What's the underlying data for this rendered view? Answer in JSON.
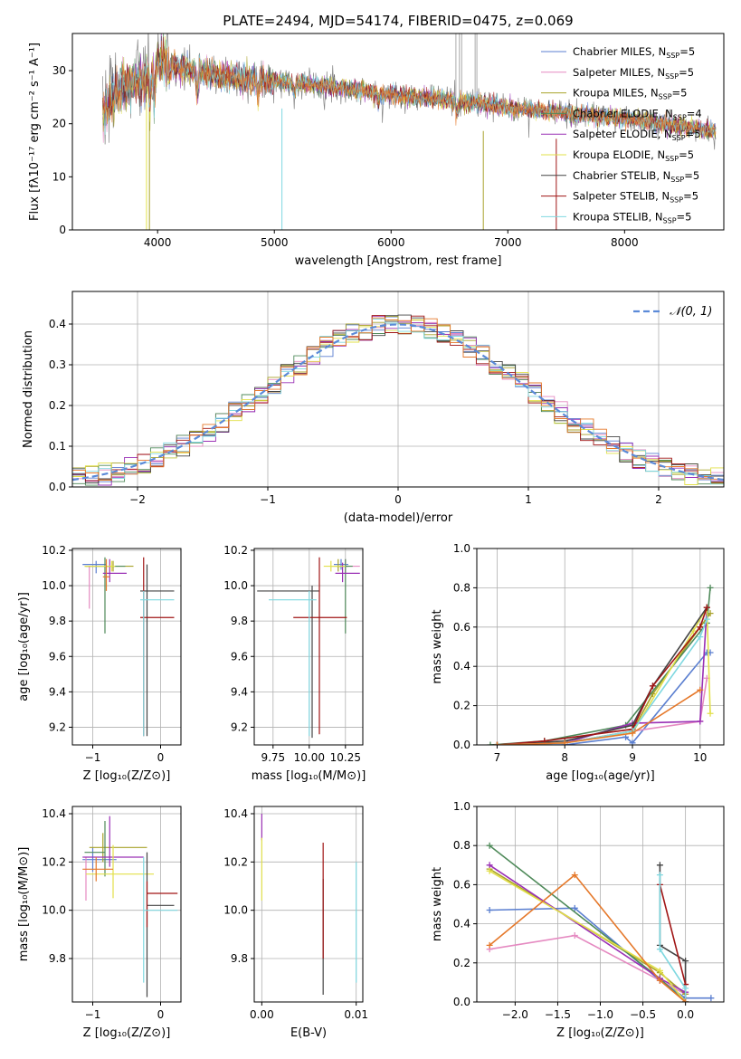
{
  "figure": {
    "title": "PLATE=2494, MJD=54174, FIBERID=0475, z=0.069"
  },
  "chart_data": [
    {
      "id": "spectrum",
      "type": "line",
      "xlabel": "wavelength [Angstrom, rest frame]",
      "ylabel": "Flux [fλ10⁻¹⁷ erg cm⁻² s⁻¹ A⁻¹]",
      "xlim": [
        3270,
        8850
      ],
      "ylim": [
        0,
        37
      ],
      "xticks": [
        4000,
        5000,
        6000,
        7000,
        8000
      ],
      "yticks": [
        0,
        10,
        20,
        30
      ],
      "legend_position": "top-right",
      "series": [
        {
          "name": "Chabrier MILES, N_SSP=5",
          "color": "#5b7fd0"
        },
        {
          "name": "Salpeter MILES, N_SSP=5",
          "color": "#e58ac1"
        },
        {
          "name": "Kroupa MILES, N_SSP=5",
          "color": "#a8a22a"
        },
        {
          "name": "Chabrier ELODIE, N_SSP=4",
          "color": "#4f8a5a"
        },
        {
          "name": "Salpeter ELODIE, N_SSP=5",
          "color": "#9a30b5"
        },
        {
          "name": "Kroupa ELODIE, N_SSP=5",
          "color": "#e2e04a"
        },
        {
          "name": "Chabrier STELIB, N_SSP=5",
          "color": "#444444"
        },
        {
          "name": "Salpeter STELIB, N_SSP=5",
          "color": "#a01515"
        },
        {
          "name": "Kroupa STELIB, N_SSP=5",
          "color": "#7fd8e0"
        }
      ],
      "continuum_knots": [
        [
          3530,
          23
        ],
        [
          3650,
          28
        ],
        [
          3800,
          29
        ],
        [
          3950,
          31
        ],
        [
          4050,
          32
        ],
        [
          4200,
          30.5
        ],
        [
          4500,
          29
        ],
        [
          5000,
          28
        ],
        [
          5500,
          27
        ],
        [
          6000,
          25.5
        ],
        [
          6500,
          24.5
        ],
        [
          7000,
          23
        ],
        [
          7500,
          22
        ],
        [
          8000,
          21
        ],
        [
          8500,
          19.5
        ],
        [
          8780,
          18.5
        ]
      ],
      "model_color": "#e5782a",
      "data_color": "#888888"
    },
    {
      "id": "residual-hist",
      "type": "histogram",
      "xlabel": "(data-model)/error",
      "ylabel": "Normed distribution",
      "xlim": [
        -2.5,
        2.5
      ],
      "ylim": [
        0,
        0.48
      ],
      "xticks": [
        -2,
        -1,
        0,
        1,
        2
      ],
      "yticks": [
        0.0,
        0.1,
        0.2,
        0.3,
        0.4
      ],
      "grid": true,
      "legend_position": "top-right",
      "reference": {
        "name": "𝒩(0, 1)",
        "color": "#5b8ad8",
        "mean": 0,
        "sigma": 1
      },
      "bin_width": 0.1,
      "bin_start": -2.5,
      "colors": [
        "#5b7fd0",
        "#e58ac1",
        "#a8a22a",
        "#4f8a5a",
        "#9a30b5",
        "#e2e04a",
        "#444444",
        "#a01515",
        "#7fd8e0",
        "#e5782a"
      ]
    },
    {
      "id": "age-vs-Z",
      "type": "errorbar",
      "xlabel": "Z [log₁₀(Z/Z⊙)]",
      "ylabel": "age  [log₁₀(age/yr)]",
      "xlim": [
        -1.3,
        0.3
      ],
      "ylim": [
        9.1,
        10.21
      ],
      "xticks": [
        -1,
        0
      ],
      "xticklabels": [
        "−1",
        "0"
      ],
      "yticks": [
        9.2,
        9.4,
        9.6,
        9.8,
        10.0,
        10.2
      ],
      "grid": true,
      "points": [
        {
          "x": -0.95,
          "xerr": [
            0.2,
            0.15
          ],
          "y": 10.12,
          "yerr": [
            0.05,
            0.02
          ],
          "color": "#5b7fd0"
        },
        {
          "x": -1.05,
          "xerr": [
            0.0,
            0.0
          ],
          "y": 10.11,
          "yerr": [
            0.24,
            0.0
          ],
          "color": "#e58ac1"
        },
        {
          "x": -0.7,
          "xerr": [
            0.4,
            0.3
          ],
          "y": 10.11,
          "yerr": [
            0.03,
            0.03
          ],
          "color": "#a8a22a"
        },
        {
          "x": -0.82,
          "xerr": [
            0.3,
            0.3
          ],
          "y": 10.11,
          "yerr": [
            0.38,
            0.05
          ],
          "color": "#4f8a5a"
        },
        {
          "x": -0.75,
          "xerr": [
            0.1,
            0.25
          ],
          "y": 10.07,
          "yerr": [
            0.05,
            0.08
          ],
          "color": "#9a30b5"
        },
        {
          "x": -0.72,
          "xerr": [
            0.4,
            0.05
          ],
          "y": 10.11,
          "yerr": [
            0.03,
            0.03
          ],
          "color": "#e2e04a"
        },
        {
          "x": -0.2,
          "xerr": [
            0.1,
            0.4
          ],
          "y": 9.97,
          "yerr": [
            0.82,
            0.15
          ],
          "color": "#444444"
        },
        {
          "x": -0.25,
          "xerr": [
            0.05,
            0.45
          ],
          "y": 9.82,
          "yerr": [
            0.67,
            0.34
          ],
          "color": "#a01515"
        },
        {
          "x": -0.25,
          "xerr": [
            0.05,
            0.45
          ],
          "y": 9.92,
          "yerr": [
            0.77,
            0.05
          ],
          "color": "#7fd8e0"
        },
        {
          "x": -0.8,
          "xerr": [
            0.05,
            0.05
          ],
          "y": 10.05,
          "yerr": [
            0.08,
            0.1
          ],
          "color": "#e5782a"
        }
      ]
    },
    {
      "id": "age-vs-mass",
      "type": "errorbar",
      "xlabel": "mass [log₁₀(M/M⊙)]",
      "xlim": [
        9.62,
        10.37
      ],
      "ylim": [
        9.1,
        10.21
      ],
      "xticks": [
        9.75,
        10.0,
        10.25
      ],
      "xticklabels": [
        "9.75",
        "10.00",
        "10.25"
      ],
      "yticks": [
        9.2,
        9.4,
        9.6,
        9.8,
        10.0,
        10.2
      ],
      "grid": true,
      "points": [
        {
          "x": 10.22,
          "xerr": [
            0.05,
            0.05
          ],
          "y": 10.12,
          "yerr": [
            0.03,
            0.03
          ],
          "color": "#5b7fd0"
        },
        {
          "x": 10.25,
          "xerr": [
            0.05,
            0.1
          ],
          "y": 10.11,
          "yerr": [
            0.04,
            0.04
          ],
          "color": "#e58ac1"
        },
        {
          "x": 10.2,
          "xerr": [
            0.05,
            0.07
          ],
          "y": 10.11,
          "yerr": [
            0.03,
            0.04
          ],
          "color": "#a8a22a"
        },
        {
          "x": 10.25,
          "xerr": [
            0.06,
            0.05
          ],
          "y": 10.11,
          "yerr": [
            0.38,
            0.04
          ],
          "color": "#4f8a5a"
        },
        {
          "x": 10.23,
          "xerr": [
            0.05,
            0.12
          ],
          "y": 10.07,
          "yerr": [
            0.05,
            0.06
          ],
          "color": "#9a30b5"
        },
        {
          "x": 10.15,
          "xerr": [
            0.05,
            0.1
          ],
          "y": 10.11,
          "yerr": [
            0.03,
            0.03
          ],
          "color": "#e2e04a"
        },
        {
          "x": 10.02,
          "xerr": [
            0.38,
            0.05
          ],
          "y": 9.97,
          "yerr": [
            0.83,
            0.03
          ],
          "color": "#444444"
        },
        {
          "x": 10.07,
          "xerr": [
            0.18,
            0.19
          ],
          "y": 9.82,
          "yerr": [
            0.66,
            0.34
          ],
          "color": "#a01515"
        },
        {
          "x": 10.0,
          "xerr": [
            0.28,
            0.05
          ],
          "y": 9.92,
          "yerr": [
            0.77,
            0.05
          ],
          "color": "#7fd8e0"
        }
      ]
    },
    {
      "id": "weight-vs-age",
      "type": "line",
      "xlabel": "age  [log₁₀(age/yr)]",
      "ylabel": "mass weight",
      "xlim": [
        6.7,
        10.35
      ],
      "ylim": [
        0,
        1
      ],
      "xticks": [
        7,
        8,
        9,
        10
      ],
      "yticks": [
        0.0,
        0.2,
        0.4,
        0.6,
        0.8,
        1.0
      ],
      "grid": true,
      "series": [
        {
          "color": "#5b7fd0",
          "x": [
            7.0,
            8.0,
            8.9,
            9.0,
            10.1,
            10.15
          ],
          "y": [
            0.0,
            0.0,
            0.04,
            0.01,
            0.47,
            0.47
          ]
        },
        {
          "color": "#e58ac1",
          "x": [
            7.0,
            8.0,
            9.0,
            10.0,
            10.1
          ],
          "y": [
            0.0,
            0.01,
            0.07,
            0.12,
            0.34
          ]
        },
        {
          "color": "#a8a22a",
          "x": [
            7.0,
            8.0,
            9.0,
            9.3,
            10.0,
            10.15
          ],
          "y": [
            0.0,
            0.01,
            0.07,
            0.26,
            0.6,
            0.67
          ]
        },
        {
          "color": "#4f8a5a",
          "x": [
            6.9,
            7.7,
            8.9,
            10.1,
            10.15
          ],
          "y": [
            0.0,
            0.02,
            0.1,
            0.62,
            0.8
          ]
        },
        {
          "color": "#9a30b5",
          "x": [
            7.0,
            8.0,
            9.0,
            10.0,
            10.1
          ],
          "y": [
            0.0,
            0.01,
            0.11,
            0.12,
            0.7
          ]
        },
        {
          "color": "#e2e04a",
          "x": [
            7.0,
            8.0,
            9.0,
            9.9,
            10.1,
            10.15
          ],
          "y": [
            0.0,
            0.01,
            0.06,
            0.58,
            0.7,
            0.16
          ]
        },
        {
          "color": "#444444",
          "x": [
            7.0,
            8.0,
            9.0,
            9.3,
            10.1
          ],
          "y": [
            0.0,
            0.02,
            0.1,
            0.3,
            0.7
          ]
        },
        {
          "color": "#a01515",
          "x": [
            7.0,
            7.7,
            9.0,
            9.3,
            10.0,
            10.1
          ],
          "y": [
            0.0,
            0.02,
            0.08,
            0.3,
            0.6,
            0.7
          ]
        },
        {
          "color": "#7fd8e0",
          "x": [
            7.0,
            8.0,
            9.0,
            10.0,
            10.1
          ],
          "y": [
            0.0,
            0.01,
            0.07,
            0.55,
            0.64
          ]
        },
        {
          "color": "#e5782a",
          "x": [
            7.0,
            8.0,
            9.0,
            10.0
          ],
          "y": [
            0.0,
            0.01,
            0.06,
            0.28
          ]
        }
      ]
    },
    {
      "id": "mass-vs-Z",
      "type": "errorbar",
      "xlabel": "Z [log₁₀(Z/Z⊙)]",
      "ylabel": "mass [log₁₀(M/M⊙)]",
      "xlim": [
        -1.3,
        0.3
      ],
      "ylim": [
        9.62,
        10.43
      ],
      "xticks": [
        -1,
        0
      ],
      "xticklabels": [
        "−1",
        "0"
      ],
      "yticks": [
        9.8,
        10.0,
        10.2,
        10.4
      ],
      "grid": true,
      "points": [
        {
          "x": -1.0,
          "xerr": [
            0.15,
            0.35
          ],
          "y": 10.21,
          "yerr": [
            0.05,
            0.05
          ],
          "color": "#5b7fd0"
        },
        {
          "x": -1.1,
          "xerr": [
            0.0,
            0.0
          ],
          "y": 10.17,
          "yerr": [
            0.13,
            0.05
          ],
          "color": "#e58ac1"
        },
        {
          "x": -0.85,
          "xerr": [
            0.2,
            0.65
          ],
          "y": 10.26,
          "yerr": [
            0.06,
            0.06
          ],
          "color": "#a8a22a"
        },
        {
          "x": -0.82,
          "xerr": [
            0.3,
            0.0
          ],
          "y": 10.24,
          "yerr": [
            0.1,
            0.13
          ],
          "color": "#4f8a5a"
        },
        {
          "x": -0.75,
          "xerr": [
            0.4,
            0.5
          ],
          "y": 10.22,
          "yerr": [
            0.04,
            0.17
          ],
          "color": "#9a30b5"
        },
        {
          "x": -0.7,
          "xerr": [
            0.4,
            0.6
          ],
          "y": 10.15,
          "yerr": [
            0.1,
            0.12
          ],
          "color": "#e2e04a"
        },
        {
          "x": -0.2,
          "xerr": [
            0.0,
            0.4
          ],
          "y": 10.02,
          "yerr": [
            0.38,
            0.22
          ],
          "color": "#444444"
        },
        {
          "x": -0.2,
          "xerr": [
            0.0,
            0.45
          ],
          "y": 10.07,
          "yerr": [
            0.14,
            0.05
          ],
          "color": "#a01515"
        },
        {
          "x": -0.25,
          "xerr": [
            0.0,
            0.5
          ],
          "y": 10.0,
          "yerr": [
            0.3,
            0.22
          ],
          "color": "#7fd8e0"
        },
        {
          "x": -0.95,
          "xerr": [
            0.2,
            0.25
          ],
          "y": 10.17,
          "yerr": [
            0.05,
            0.05
          ],
          "color": "#e5782a"
        }
      ]
    },
    {
      "id": "mass-vs-ebv",
      "type": "errorbar",
      "xlabel": "E(B-V)",
      "xlim": [
        -0.0008,
        0.0107
      ],
      "ylim": [
        9.62,
        10.43
      ],
      "xticks": [
        0.0,
        0.01
      ],
      "xticklabels": [
        "0.00",
        "0.01"
      ],
      "yticks": [
        9.8,
        10.0,
        10.2,
        10.4
      ],
      "grid": true,
      "points": [
        {
          "x": 0.0,
          "xerr": [
            0,
            0
          ],
          "y": 10.35,
          "yerr": [
            0.06,
            0.05
          ],
          "color": "#9a30b5"
        },
        {
          "x": 0.0,
          "xerr": [
            0,
            0
          ],
          "y": 10.15,
          "yerr": [
            0.11,
            0.15
          ],
          "color": "#e2e04a"
        },
        {
          "x": 0.0065,
          "xerr": [
            0,
            0
          ],
          "y": 10.0,
          "yerr": [
            0.35,
            0.13
          ],
          "color": "#444444"
        },
        {
          "x": 0.0065,
          "xerr": [
            0,
            0
          ],
          "y": 10.05,
          "yerr": [
            0.25,
            0.23
          ],
          "color": "#a01515"
        },
        {
          "x": 0.01,
          "xerr": [
            0,
            0
          ],
          "y": 9.95,
          "yerr": [
            0.25,
            0.25
          ],
          "color": "#7fd8e0"
        }
      ]
    },
    {
      "id": "weight-vs-Z",
      "type": "line",
      "xlabel": "Z [log₁₀(Z/Z⊙)]",
      "ylabel": "mass weight",
      "xlim": [
        -2.45,
        0.45
      ],
      "ylim": [
        0,
        1
      ],
      "xticks": [
        -2.0,
        -1.5,
        -1.0,
        -0.5,
        0.0
      ],
      "xticklabels": [
        "−2.0",
        "−1.5",
        "−1.0",
        "−0.5",
        "0.0"
      ],
      "yticks": [
        0.0,
        0.2,
        0.4,
        0.6,
        0.8,
        1.0
      ],
      "grid": true,
      "series": [
        {
          "color": "#5b7fd0",
          "x": [
            -2.3,
            -1.3,
            -0.3,
            0.0,
            0.3
          ],
          "y": [
            0.47,
            0.48,
            0.11,
            0.02,
            0.02
          ]
        },
        {
          "color": "#e58ac1",
          "x": [
            -2.3,
            -1.3,
            -0.3,
            0.0
          ],
          "y": [
            0.27,
            0.34,
            0.11,
            0.04
          ]
        },
        {
          "color": "#a8a22a",
          "x": [
            -2.3,
            -0.3,
            0.0
          ],
          "y": [
            0.68,
            0.15,
            0.04
          ]
        },
        {
          "color": "#4f8a5a",
          "x": [
            -2.3,
            -0.3,
            0.0
          ],
          "y": [
            0.8,
            0.12,
            0.0
          ]
        },
        {
          "color": "#9a30b5",
          "x": [
            -2.3,
            -0.3,
            0.0
          ],
          "y": [
            0.7,
            0.12,
            0.05
          ]
        },
        {
          "color": "#e2e04a",
          "x": [
            -2.3,
            -0.3,
            0.0
          ],
          "y": [
            0.67,
            0.16,
            0.0
          ]
        },
        {
          "color": "#444444",
          "x": [
            -0.3,
            -0.3,
            0.0,
            0.0
          ],
          "y": [
            0.7,
            0.29,
            0.21,
            0.0
          ]
        },
        {
          "color": "#a01515",
          "x": [
            -0.3,
            0.0,
            0.0
          ],
          "y": [
            0.6,
            0.09,
            0.0
          ]
        },
        {
          "color": "#7fd8e0",
          "x": [
            -0.3,
            -0.3,
            0.0,
            0.0
          ],
          "y": [
            0.65,
            0.27,
            0.07,
            0.0
          ]
        },
        {
          "color": "#e5782a",
          "x": [
            -2.3,
            -1.3,
            -0.3,
            0.0
          ],
          "y": [
            0.29,
            0.65,
            0.11,
            0.0
          ]
        }
      ]
    }
  ]
}
